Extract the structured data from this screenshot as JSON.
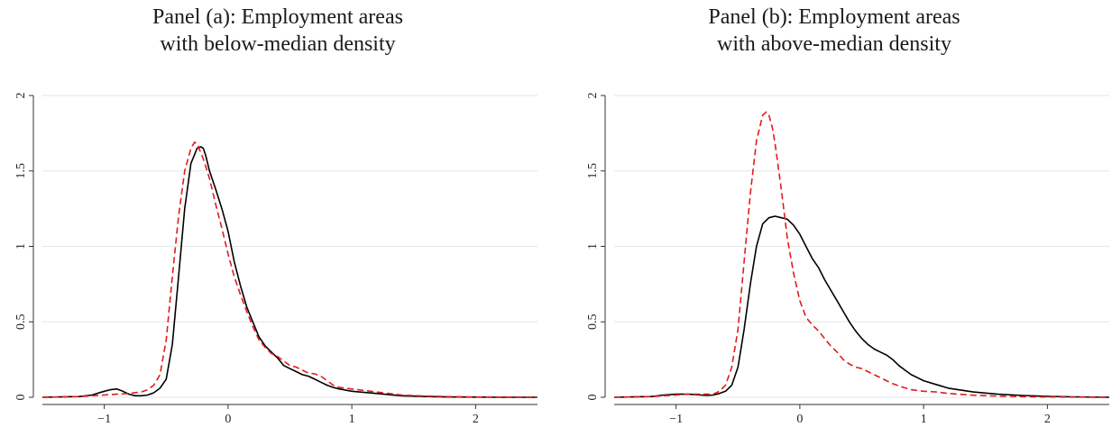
{
  "chart_data": [
    {
      "type": "line",
      "title_lines": [
        "Panel (a): Employment areas",
        "with below-median density"
      ],
      "xlabel": "",
      "ylabel": "",
      "xlim": [
        -1.5,
        2.5
      ],
      "ylim": [
        0,
        2
      ],
      "xticks": [
        -1,
        0,
        1,
        2
      ],
      "xtick_labels": [
        "−1",
        "0",
        "1",
        "2"
      ],
      "yticks": [
        0,
        0.5,
        1,
        1.5,
        2
      ],
      "ytick_labels": [
        "0",
        "0.5",
        "1",
        "1.5",
        "2"
      ],
      "grid": "horizontal",
      "series": [
        {
          "color": "#000000",
          "dash": "solid",
          "x": [
            -1.5,
            -1.2,
            -1.1,
            -1.0,
            -0.95,
            -0.9,
            -0.85,
            -0.8,
            -0.75,
            -0.7,
            -0.65,
            -0.6,
            -0.55,
            -0.5,
            -0.45,
            -0.4,
            -0.35,
            -0.3,
            -0.25,
            -0.22,
            -0.2,
            -0.18,
            -0.15,
            -0.1,
            -0.05,
            0.0,
            0.05,
            0.1,
            0.15,
            0.2,
            0.25,
            0.3,
            0.35,
            0.4,
            0.45,
            0.5,
            0.55,
            0.6,
            0.65,
            0.7,
            0.75,
            0.8,
            0.85,
            0.9,
            1.0,
            1.2,
            1.4,
            1.6,
            1.8,
            2.0,
            2.2,
            2.5
          ],
          "y": [
            0.0,
            0.005,
            0.015,
            0.04,
            0.05,
            0.055,
            0.04,
            0.02,
            0.01,
            0.01,
            0.015,
            0.03,
            0.06,
            0.12,
            0.35,
            0.8,
            1.25,
            1.55,
            1.65,
            1.66,
            1.65,
            1.6,
            1.5,
            1.38,
            1.25,
            1.1,
            0.9,
            0.74,
            0.6,
            0.5,
            0.4,
            0.34,
            0.3,
            0.26,
            0.21,
            0.19,
            0.17,
            0.15,
            0.14,
            0.12,
            0.1,
            0.08,
            0.065,
            0.055,
            0.04,
            0.025,
            0.01,
            0.005,
            0.002,
            0.001,
            0.0,
            0.0
          ]
        },
        {
          "color": "#e41a1c",
          "dash": "dashed",
          "x": [
            -1.5,
            -1.2,
            -1.0,
            -0.9,
            -0.8,
            -0.7,
            -0.65,
            -0.6,
            -0.55,
            -0.5,
            -0.45,
            -0.4,
            -0.35,
            -0.3,
            -0.27,
            -0.25,
            -0.2,
            -0.15,
            -0.1,
            -0.05,
            0.0,
            0.05,
            0.1,
            0.15,
            0.2,
            0.25,
            0.3,
            0.35,
            0.4,
            0.45,
            0.5,
            0.55,
            0.6,
            0.65,
            0.7,
            0.75,
            0.8,
            0.85,
            0.9,
            1.0,
            1.2,
            1.4,
            1.6,
            1.8,
            2.0,
            2.2,
            2.5
          ],
          "y": [
            0.0,
            0.005,
            0.015,
            0.02,
            0.025,
            0.035,
            0.05,
            0.08,
            0.15,
            0.38,
            0.8,
            1.2,
            1.5,
            1.65,
            1.69,
            1.68,
            1.58,
            1.45,
            1.28,
            1.12,
            0.95,
            0.8,
            0.68,
            0.57,
            0.47,
            0.38,
            0.33,
            0.29,
            0.27,
            0.24,
            0.21,
            0.2,
            0.18,
            0.16,
            0.155,
            0.14,
            0.11,
            0.08,
            0.065,
            0.055,
            0.035,
            0.015,
            0.008,
            0.004,
            0.002,
            0.001,
            0.0
          ]
        }
      ]
    },
    {
      "type": "line",
      "title_lines": [
        "Panel (b): Employment areas",
        "with above-median density"
      ],
      "xlabel": "",
      "ylabel": "",
      "xlim": [
        -1.5,
        2.5
      ],
      "ylim": [
        0,
        2
      ],
      "xticks": [
        -1,
        0,
        1,
        2
      ],
      "xtick_labels": [
        "−1",
        "0",
        "1",
        "2"
      ],
      "yticks": [
        0,
        0.5,
        1,
        1.5,
        2
      ],
      "ytick_labels": [
        "0",
        "0.5",
        "1",
        "1.5",
        "2"
      ],
      "grid": "horizontal",
      "series": [
        {
          "color": "#000000",
          "dash": "solid",
          "x": [
            -1.5,
            -1.2,
            -1.1,
            -1.0,
            -0.9,
            -0.8,
            -0.75,
            -0.7,
            -0.65,
            -0.6,
            -0.55,
            -0.5,
            -0.45,
            -0.4,
            -0.35,
            -0.3,
            -0.25,
            -0.2,
            -0.15,
            -0.1,
            -0.05,
            0.0,
            0.05,
            0.1,
            0.15,
            0.2,
            0.25,
            0.3,
            0.35,
            0.4,
            0.45,
            0.5,
            0.55,
            0.6,
            0.65,
            0.7,
            0.75,
            0.8,
            0.85,
            0.9,
            1.0,
            1.1,
            1.2,
            1.4,
            1.6,
            1.8,
            2.0,
            2.2,
            2.5
          ],
          "y": [
            0.0,
            0.005,
            0.015,
            0.02,
            0.02,
            0.015,
            0.012,
            0.015,
            0.025,
            0.04,
            0.08,
            0.2,
            0.45,
            0.75,
            1.0,
            1.15,
            1.19,
            1.2,
            1.19,
            1.18,
            1.14,
            1.08,
            1.0,
            0.92,
            0.86,
            0.78,
            0.71,
            0.64,
            0.57,
            0.5,
            0.44,
            0.39,
            0.35,
            0.32,
            0.3,
            0.28,
            0.25,
            0.21,
            0.18,
            0.15,
            0.11,
            0.085,
            0.06,
            0.035,
            0.02,
            0.012,
            0.006,
            0.003,
            0.0
          ]
        },
        {
          "color": "#e41a1c",
          "dash": "dashed",
          "x": [
            -1.5,
            -1.2,
            -1.0,
            -0.9,
            -0.8,
            -0.7,
            -0.65,
            -0.6,
            -0.55,
            -0.5,
            -0.45,
            -0.4,
            -0.35,
            -0.3,
            -0.27,
            -0.25,
            -0.22,
            -0.2,
            -0.15,
            -0.1,
            -0.05,
            0.0,
            0.05,
            0.1,
            0.15,
            0.2,
            0.25,
            0.3,
            0.35,
            0.4,
            0.45,
            0.5,
            0.55,
            0.6,
            0.65,
            0.7,
            0.75,
            0.8,
            0.85,
            0.9,
            1.0,
            1.1,
            1.2,
            1.4,
            1.6,
            1.8,
            2.0,
            2.2,
            2.5
          ],
          "y": [
            0.0,
            0.005,
            0.015,
            0.02,
            0.02,
            0.02,
            0.04,
            0.08,
            0.2,
            0.45,
            0.9,
            1.35,
            1.7,
            1.87,
            1.89,
            1.87,
            1.78,
            1.68,
            1.38,
            1.05,
            0.82,
            0.64,
            0.53,
            0.48,
            0.44,
            0.39,
            0.34,
            0.3,
            0.25,
            0.22,
            0.2,
            0.19,
            0.17,
            0.15,
            0.13,
            0.11,
            0.09,
            0.075,
            0.062,
            0.05,
            0.04,
            0.035,
            0.025,
            0.014,
            0.008,
            0.004,
            0.002,
            0.001,
            0.0
          ]
        }
      ]
    }
  ]
}
